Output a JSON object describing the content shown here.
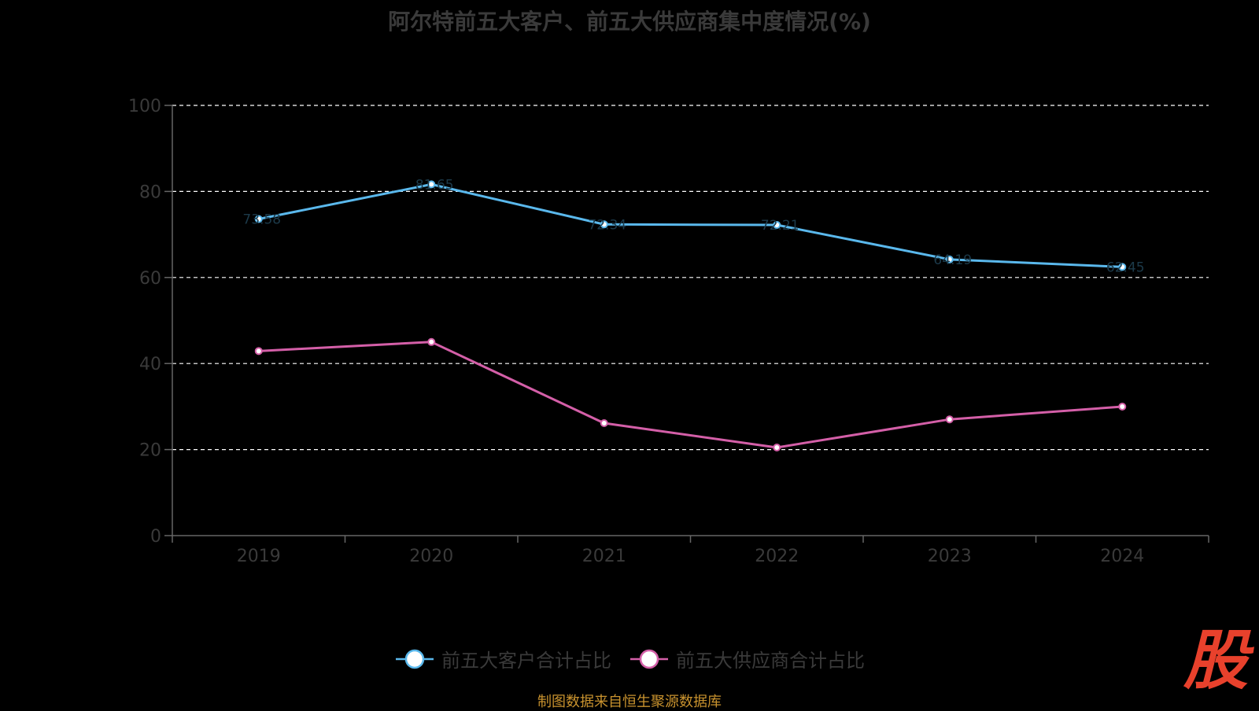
{
  "title": "阿尔特前五大客户、前五大供应商集中度情况(%)",
  "source_note": "制图数据来自恒生聚源数据库",
  "logo_text": "股",
  "colors": {
    "background": "#000000",
    "series_customers": "#5ab8ec",
    "series_suppliers": "#d45fa8",
    "axis": "#666666",
    "grid": "#ffffff",
    "tick_label": "#3a3a3a"
  },
  "chart_data": {
    "type": "line",
    "title": "阿尔特前五大客户、前五大供应商集中度情况(%)",
    "xlabel": "",
    "ylabel": "",
    "categories": [
      "2019",
      "2020",
      "2021",
      "2022",
      "2023",
      "2024"
    ],
    "ylim": [
      0,
      100
    ],
    "yticks": [
      0,
      20,
      40,
      60,
      80,
      100
    ],
    "grid": true,
    "legend_position": "bottom-center",
    "series": [
      {
        "name": "前五大客户合计占比",
        "values": [
          73.58,
          81.65,
          72.34,
          72.21,
          64.19,
          62.45
        ]
      },
      {
        "name": "前五大供应商合计占比",
        "values": [
          42.9,
          45.01,
          26.14,
          20.48,
          27.02,
          29.98
        ]
      }
    ]
  }
}
